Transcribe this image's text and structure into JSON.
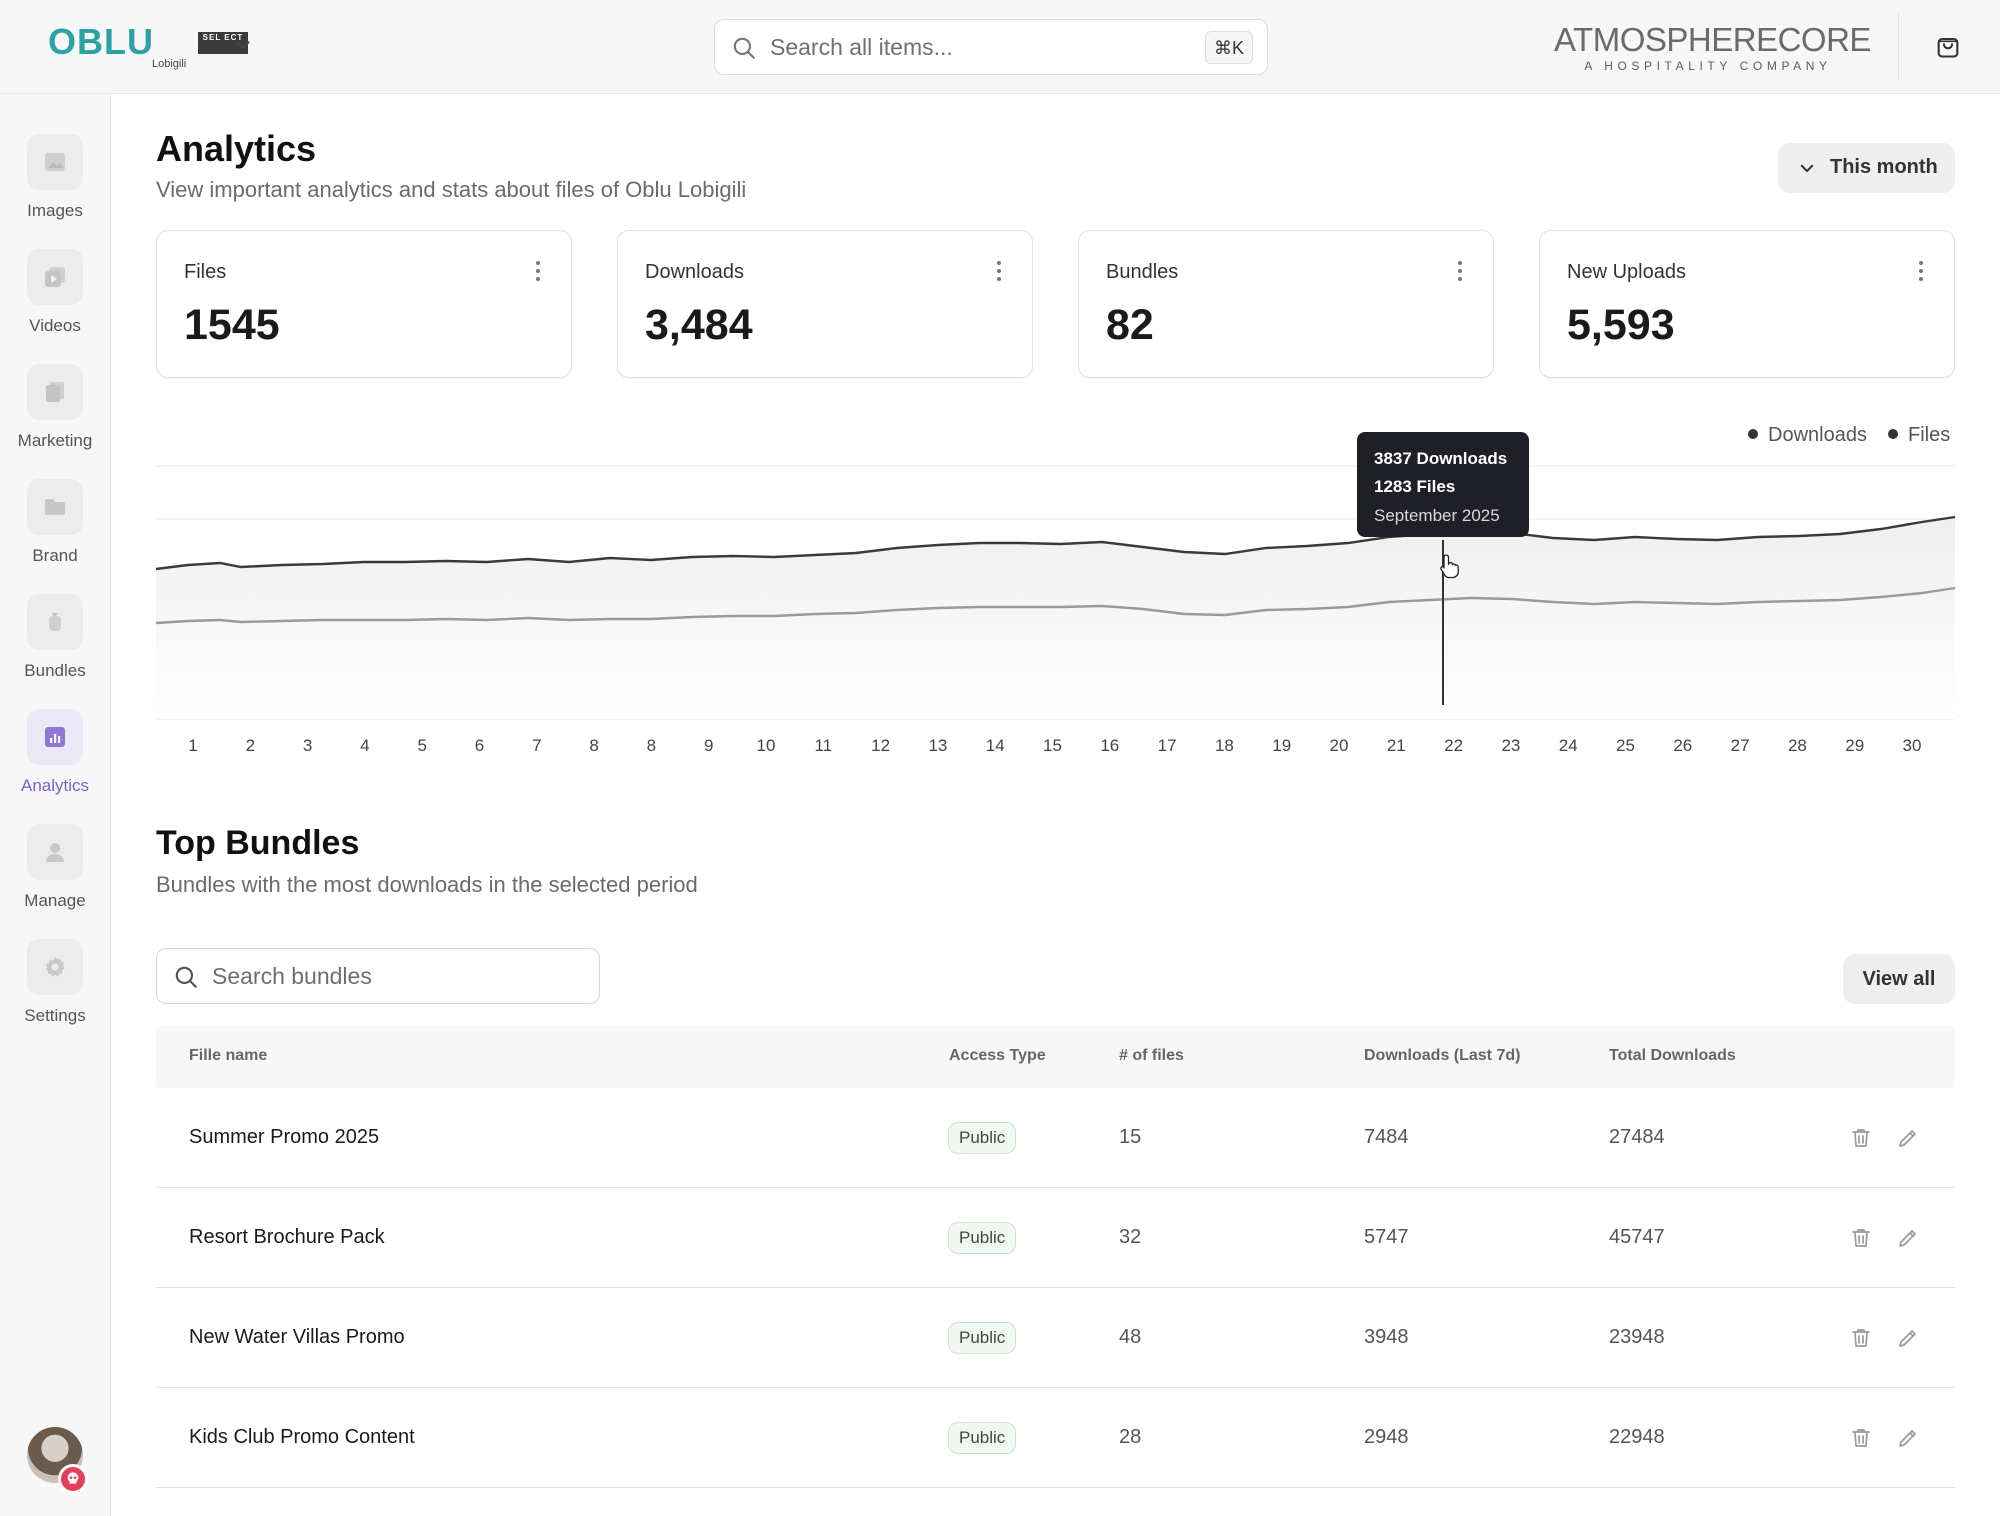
{
  "header": {
    "brand": "OBLU",
    "brand_badge": "SEL ECT",
    "brand_sub": "Lobigili",
    "search_placeholder": "Search all items...",
    "search_shortcut": "⌘K",
    "partner_name": "ATMOSPHERECORE",
    "partner_tagline": "A HOSPITALITY COMPANY"
  },
  "sidebar": {
    "items": [
      {
        "label": "Images",
        "icon": "image-icon"
      },
      {
        "label": "Videos",
        "icon": "video-icon"
      },
      {
        "label": "Marketing",
        "icon": "documents-icon"
      },
      {
        "label": "Brand",
        "icon": "folder-icon"
      },
      {
        "label": "Bundles",
        "icon": "bundle-icon"
      },
      {
        "label": "Analytics",
        "icon": "chart-icon",
        "active": true
      },
      {
        "label": "Manage",
        "icon": "user-icon"
      },
      {
        "label": "Settings",
        "icon": "gear-icon"
      }
    ],
    "accent": "#7b5fd0"
  },
  "page": {
    "title": "Analytics",
    "subtitle": "View important analytics and stats about files of Oblu Lobigili",
    "period": "This month"
  },
  "stats": [
    {
      "label": "Files",
      "value": "1545"
    },
    {
      "label": "Downloads",
      "value": "3,484"
    },
    {
      "label": "Bundles",
      "value": "82"
    },
    {
      "label": "New Uploads",
      "value": "5,593"
    }
  ],
  "chart_data": {
    "type": "area",
    "x": [
      "1",
      "2",
      "3",
      "4",
      "5",
      "6",
      "7",
      "8",
      "8",
      "9",
      "10",
      "11",
      "12",
      "13",
      "14",
      "15",
      "16",
      "17",
      "18",
      "19",
      "20",
      "21",
      "22",
      "23",
      "24",
      "25",
      "26",
      "27",
      "28",
      "29",
      "30"
    ],
    "series": [
      {
        "name": "Downloads",
        "color": "#3a3a3a"
      },
      {
        "name": "Files",
        "color": "#9a9a9a"
      }
    ],
    "tooltip": {
      "line1": "3837 Downloads",
      "line2": "1283 Files",
      "line3": "September 2025"
    },
    "grid": true,
    "legend_position": "top-right"
  },
  "bundles": {
    "title": "Top Bundles",
    "subtitle": "Bundles with the most downloads in the selected period",
    "search_placeholder": "Search bundles",
    "view_all": "View all",
    "columns": [
      "Fille name",
      "Access Type",
      "# of files",
      "Downloads (Last 7d)",
      "Total Downloads"
    ],
    "rows": [
      {
        "name": "Summer Promo 2025",
        "access": "Public",
        "files": "15",
        "last7": "7484",
        "total": "27484"
      },
      {
        "name": "Resort Brochure Pack",
        "access": "Public",
        "files": "32",
        "last7": "5747",
        "total": "45747"
      },
      {
        "name": "New Water Villas Promo",
        "access": "Public",
        "files": "48",
        "last7": "3948",
        "total": "23948"
      },
      {
        "name": "Kids Club Promo Content",
        "access": "Public",
        "files": "28",
        "last7": "2948",
        "total": "22948"
      }
    ]
  }
}
